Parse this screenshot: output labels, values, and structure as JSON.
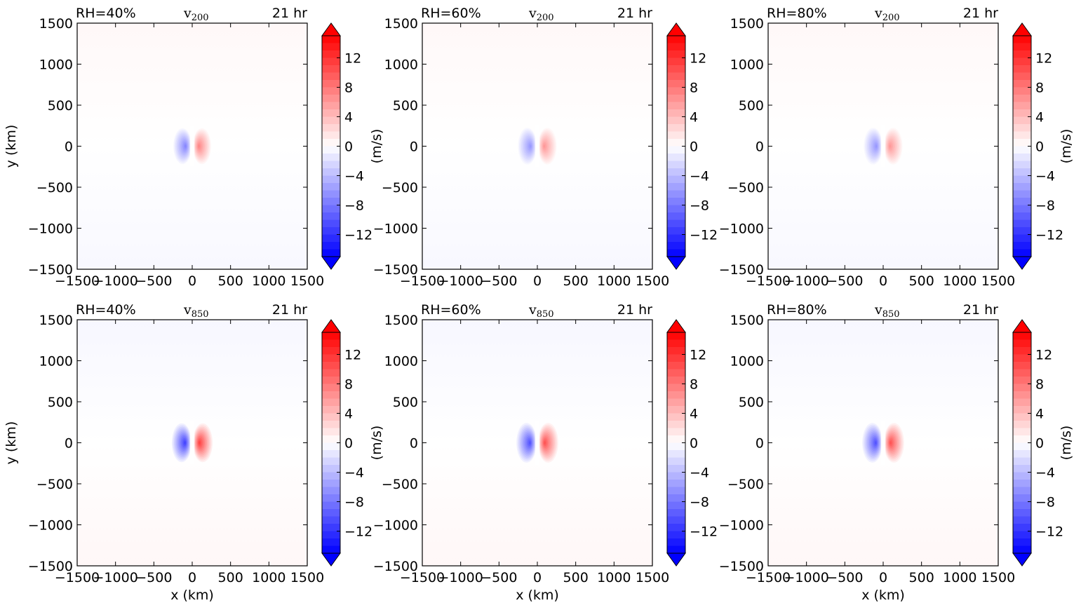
{
  "chart_data": [
    {
      "type": "heatmap",
      "panel": "RH40-v200",
      "rh_label": "RH=40%",
      "variable": "v",
      "level": "200",
      "time_label": "21 hr",
      "xlabel": "",
      "ylabel": "y (km)",
      "cbar_label": "",
      "xlim": [
        -1500,
        1500
      ],
      "ylim": [
        -1500,
        1500
      ],
      "xticks": [
        "−1500",
        "−1000",
        "−500",
        "0",
        "500",
        "1000",
        "1500"
      ],
      "yticks": [
        "1500",
        "1000",
        "500",
        "0",
        "−500",
        "−1000",
        "−1500"
      ],
      "colorbar": {
        "range": [
          -15,
          15
        ],
        "ticks": [
          "12",
          "8",
          "4",
          "0",
          "−4",
          "−8",
          "−12"
        ],
        "extend": "both"
      },
      "dipole": {
        "center": [
          0,
          0
        ],
        "peak_magnitude": 7,
        "radius_km": 350,
        "west": "negative",
        "east": "positive"
      },
      "background": {
        "north": 0.4,
        "south": -0.4
      }
    },
    {
      "type": "heatmap",
      "panel": "RH60-v200",
      "rh_label": "RH=60%",
      "variable": "v",
      "level": "200",
      "time_label": "21 hr",
      "xlabel": "",
      "ylabel": "",
      "cbar_label": "(m/s)",
      "xlim": [
        -1500,
        1500
      ],
      "ylim": [
        -1500,
        1500
      ],
      "xticks": [
        "−1500",
        "−1000",
        "−500",
        "0",
        "500",
        "1000",
        "1500"
      ],
      "yticks": [
        "1500",
        "1000",
        "500",
        "0",
        "−500",
        "−1000",
        "−1500"
      ],
      "colorbar": {
        "range": [
          -15,
          15
        ],
        "ticks": [
          "12",
          "8",
          "4",
          "0",
          "−4",
          "−8",
          "−12"
        ],
        "extend": "both"
      },
      "dipole": {
        "center": [
          0,
          0
        ],
        "peak_magnitude": 6,
        "radius_km": 360,
        "west": "negative",
        "east": "positive"
      },
      "background": {
        "north": 0.4,
        "south": -0.4
      }
    },
    {
      "type": "heatmap",
      "panel": "RH80-v200",
      "rh_label": "RH=80%",
      "variable": "v",
      "level": "200",
      "time_label": "21 hr",
      "xlabel": "",
      "ylabel": "",
      "cbar_label": "(m/s)",
      "xlim": [
        -1500,
        1500
      ],
      "ylim": [
        -1500,
        1500
      ],
      "xticks": [
        "−1500",
        "−1000",
        "−500",
        "0",
        "500",
        "1000",
        "1500"
      ],
      "yticks": [
        "1500",
        "1000",
        "500",
        "0",
        "−500",
        "−1000",
        "−1500"
      ],
      "colorbar": {
        "range": [
          -15,
          15
        ],
        "ticks": [
          "12",
          "8",
          "4",
          "0",
          "−4",
          "−8",
          "−12"
        ],
        "extend": "both"
      },
      "dipole": {
        "center": [
          0,
          0
        ],
        "peak_magnitude": 6,
        "radius_km": 360,
        "west": "negative",
        "east": "positive"
      },
      "background": {
        "north": 0.4,
        "south": -0.4
      }
    },
    {
      "type": "heatmap",
      "panel": "RH40-v850",
      "rh_label": "RH=40%",
      "variable": "v",
      "level": "850",
      "time_label": "21 hr",
      "xlabel": "x (km)",
      "ylabel": "y (km)",
      "cbar_label": "",
      "xlim": [
        -1500,
        1500
      ],
      "ylim": [
        -1500,
        1500
      ],
      "xticks": [
        "−1500",
        "−1000",
        "−500",
        "0",
        "500",
        "1000",
        "1500"
      ],
      "yticks": [
        "1500",
        "1000",
        "500",
        "0",
        "−500",
        "−1000",
        "−1500"
      ],
      "colorbar": {
        "range": [
          -15,
          15
        ],
        "ticks": [
          "12",
          "8",
          "4",
          "0",
          "−4",
          "−8",
          "−12"
        ],
        "extend": "both"
      },
      "dipole": {
        "center": [
          0,
          0
        ],
        "peak_magnitude": 11,
        "radius_km": 380,
        "west": "negative",
        "east": "positive"
      },
      "background": {
        "north": -0.5,
        "south": 0.5
      }
    },
    {
      "type": "heatmap",
      "panel": "RH60-v850",
      "rh_label": "RH=60%",
      "variable": "v",
      "level": "850",
      "time_label": "21 hr",
      "xlabel": "x (km)",
      "ylabel": "",
      "cbar_label": "(m/s)",
      "xlim": [
        -1500,
        1500
      ],
      "ylim": [
        -1500,
        1500
      ],
      "xticks": [
        "−1500",
        "−1000",
        "−500",
        "0",
        "500",
        "1000",
        "1500"
      ],
      "yticks": [
        "1500",
        "1000",
        "500",
        "0",
        "−500",
        "−1000",
        "−1500"
      ],
      "colorbar": {
        "range": [
          -15,
          15
        ],
        "ticks": [
          "12",
          "8",
          "4",
          "0",
          "−4",
          "−8",
          "−12"
        ],
        "extend": "both"
      },
      "dipole": {
        "center": [
          0,
          0
        ],
        "peak_magnitude": 10,
        "radius_km": 390,
        "west": "negative",
        "east": "positive"
      },
      "background": {
        "north": -0.5,
        "south": 0.5
      }
    },
    {
      "type": "heatmap",
      "panel": "RH80-v850",
      "rh_label": "RH=80%",
      "variable": "v",
      "level": "850",
      "time_label": "21 hr",
      "xlabel": "x (km)",
      "ylabel": "",
      "cbar_label": "(m/s)",
      "xlim": [
        -1500,
        1500
      ],
      "ylim": [
        -1500,
        1500
      ],
      "xticks": [
        "−1500",
        "−1000",
        "−500",
        "0",
        "500",
        "1000",
        "1500"
      ],
      "yticks": [
        "1500",
        "1000",
        "500",
        "0",
        "−500",
        "−1000",
        "−1500"
      ],
      "colorbar": {
        "range": [
          -15,
          15
        ],
        "ticks": [
          "12",
          "8",
          "4",
          "0",
          "−4",
          "−8",
          "−12"
        ],
        "extend": "both"
      },
      "dipole": {
        "center": [
          0,
          0
        ],
        "peak_magnitude": 10,
        "radius_km": 390,
        "west": "negative",
        "east": "positive"
      },
      "background": {
        "north": -0.5,
        "south": 0.5
      }
    }
  ],
  "colors": {
    "negative": "#0000ff",
    "zero": "#ffffff",
    "positive": "#ff0000",
    "frame": "#000000"
  }
}
